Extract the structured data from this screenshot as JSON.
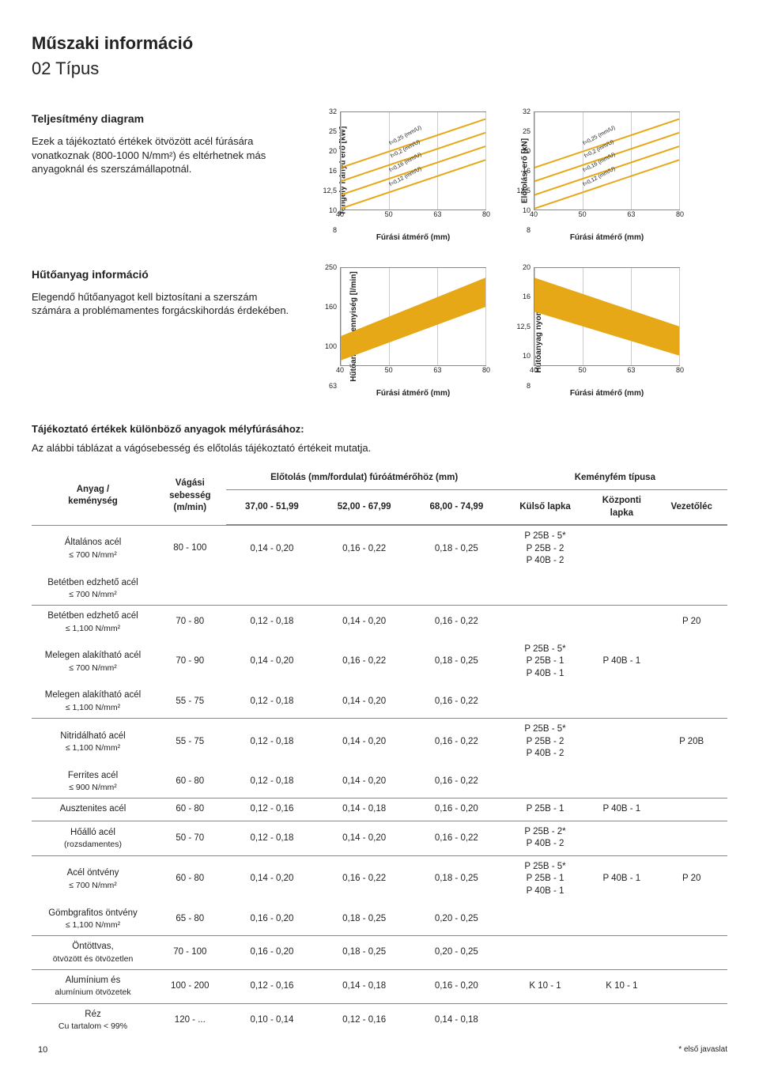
{
  "page": {
    "title": "Műszaki információ",
    "subtitle": "02 Típus",
    "page_number": "10",
    "footnote": "* első javaslat"
  },
  "perf": {
    "heading": "Teljesítmény diagram",
    "body": "Ezek a tájékoztató értékek ötvözött acél fúrására vonatkoznak (800-1000 N/mm²) és eltérhetnek más anyagoknál és szerszámállapotnál."
  },
  "coolant": {
    "heading": "Hűtőanyag információ",
    "body": "Elegendő hűtőanyagot kell biztosítani a szerszám számára a problémamentes forgácskihordás érdekében."
  },
  "table_intro": {
    "heading": "Tájékoztató értékek különböző anyagok mélyfúrásához:",
    "body": "Az alábbi táblázat a vágósebesség és előtolás tájékoztató értékeit mutatja."
  },
  "charts": {
    "x_label": "Fúrási átmérő (mm)",
    "x_ticks": [
      "40",
      "50",
      "63",
      "80"
    ],
    "power": {
      "y_label": "Tengely irányú erő [kW]",
      "y_ticks": [
        "8",
        "10",
        "12,5",
        "16",
        "20",
        "25",
        "32"
      ],
      "series_labels": [
        "f=0,25 (mm/U)",
        "f=0,2 (mm/U)",
        "f=0,16 (mm/U)",
        "f=0,12 (mm/U)"
      ],
      "series_color": "#e6a817",
      "bg_color": "#ffffff",
      "grid_color": "#cccccc",
      "note": "4 parallel diagonal lines rising L→R; log-ish axes"
    },
    "thrust": {
      "y_label": "Előtolási erő [kN]",
      "y_ticks": [
        "8",
        "10",
        "12,5",
        "16",
        "20",
        "25",
        "32"
      ],
      "series_labels": [
        "f=0,25 (mm/U)",
        "f=0,2 (mm/U)",
        "f=0,16 (mm/U)",
        "f=0,12 (mm/U)"
      ],
      "series_color": "#e6a817"
    },
    "flow": {
      "y_label": "Hűtőanyag mennyiség [l/min]",
      "y_ticks": [
        "63",
        "100",
        "160",
        "250"
      ],
      "band_color": "#e6a817",
      "note": "solid orange band rising L→R"
    },
    "pressure": {
      "y_label": "Hűtőanyag nyomás [bar]",
      "y_ticks": [
        "8",
        "10",
        "12,5",
        "16",
        "20"
      ],
      "band_color": "#e6a817",
      "note": "solid orange band falling L→R"
    }
  },
  "table": {
    "headers": {
      "material": "Anyag /\nkeménység",
      "speed": "Vágási\nsebesség\n(m/min)",
      "feed_group": "Előtolás (mm/fordulat) fúróátmérőhöz (mm)",
      "feed_cols": [
        "37,00 - 51,99",
        "52,00 - 67,99",
        "68,00 - 74,99"
      ],
      "insert_group": "Keményfém típusa",
      "insert_cols": [
        "Külső lapka",
        "Központi\nlapka",
        "Vezetőléc"
      ]
    },
    "rows": [
      {
        "mat": "Általános acél",
        "sub": "≤ 700 N/mm²",
        "speed": "80 - 100",
        "f": [
          "0,14 - 0,20",
          "0,16 - 0,22",
          "0,18 - 0,25"
        ],
        "outer": "P 25B - 5*\nP 25B - 2\nP 40B - 2",
        "center": "",
        "guide": ""
      },
      {
        "mat": "Betétben edzhető acél",
        "sub": "≤ 700 N/mm²",
        "same_row": true
      },
      {
        "mat": "Betétben edzhető acél",
        "sub": "≤ 1,100 N/mm²",
        "speed": "70 -  80",
        "f": [
          "0,12 - 0,18",
          "0,14 - 0,20",
          "0,16 - 0,22"
        ],
        "outer": "",
        "center": "",
        "guide": "P 20",
        "sep": true
      },
      {
        "mat": "Melegen alakítható acél",
        "sub": "≤ 700 N/mm²",
        "speed": "70 -  90",
        "f": [
          "0,14 - 0,20",
          "0,16 - 0,22",
          "0,18 - 0,25"
        ],
        "outer": "P 25B - 5*\nP 25B - 1\nP 40B - 1",
        "center": "P 40B - 1",
        "guide": ""
      },
      {
        "mat": "Melegen alakítható acél",
        "sub": "≤ 1,100 N/mm²",
        "speed": "55 -  75",
        "f": [
          "0,12 - 0,18",
          "0,14 - 0,20",
          "0,16 - 0,22"
        ],
        "outer": "",
        "center": "",
        "guide": ""
      },
      {
        "mat": "Nitridálható acél",
        "sub": "≤ 1,100 N/mm²",
        "speed": "55 -  75",
        "f": [
          "0,12 - 0,18",
          "0,14 - 0,20",
          "0,16 - 0,22"
        ],
        "outer": "P 25B - 5*\nP 25B - 2\nP 40B - 2",
        "center": "",
        "guide": "P 20B",
        "sep": true
      },
      {
        "mat": "Ferrites acél",
        "sub": "≤ 900 N/mm²",
        "speed": "60 -  80",
        "f": [
          "0,12 - 0,18",
          "0,14 - 0,20",
          "0,16 - 0,22"
        ],
        "outer": "",
        "center": "",
        "guide": ""
      },
      {
        "mat": "Ausztenites acél",
        "sub": "",
        "speed": "60 -  80",
        "f": [
          "0,12 - 0,16",
          "0,14 - 0,18",
          "0,16 - 0,20"
        ],
        "outer": "P 25B - 1",
        "center": "P 40B - 1",
        "guide": "",
        "sep": true
      },
      {
        "mat": "Hőálló acél",
        "sub": "(rozsdamentes)",
        "speed": "50 -  70",
        "f": [
          "0,12 - 0,18",
          "0,14 - 0,20",
          "0,16 - 0,22"
        ],
        "outer": "P 25B - 2*\nP 40B - 2",
        "center": "",
        "guide": "",
        "sep": true
      },
      {
        "mat": "Acél öntvény",
        "sub": "≤ 700 N/mm²",
        "speed": "60 -  80",
        "f": [
          "0,14 - 0,20",
          "0,16 - 0,22",
          "0,18 - 0,25"
        ],
        "outer": "P 25B - 5*\nP 25B - 1\nP 40B - 1",
        "center": "P 40B - 1",
        "guide": "P 20",
        "sep": true
      },
      {
        "mat": "Gömbgrafitos öntvény",
        "sub": "≤ 1,100 N/mm²",
        "speed": "65 -  80",
        "f": [
          "0,16 - 0,20",
          "0,18 - 0,25",
          "0,20 - 0,25"
        ],
        "outer": "",
        "center": "",
        "guide": ""
      },
      {
        "mat": "Öntöttvas,",
        "sub": "ötvözött és ötvözetlen",
        "speed": "70 - 100",
        "f": [
          "0,16 - 0,20",
          "0,18 - 0,25",
          "0,20 - 0,25"
        ],
        "outer": "",
        "center": "",
        "guide": "",
        "sep": true
      },
      {
        "mat": "Alumínium és",
        "sub": "alumínium ötvözetek",
        "speed": "100 - 200",
        "f": [
          "0,12 - 0,16",
          "0,14 - 0,18",
          "0,16 - 0,20"
        ],
        "outer": "K 10 - 1",
        "center": "K 10 - 1",
        "guide": "",
        "sep": true
      },
      {
        "mat": "Réz",
        "sub": "Cu tartalom < 99%",
        "speed": "120 -   ...",
        "f": [
          "0,10 - 0,14",
          "0,12 - 0,16",
          "0,14 - 0,18"
        ],
        "outer": "",
        "center": "",
        "guide": "",
        "sep": true
      }
    ]
  }
}
